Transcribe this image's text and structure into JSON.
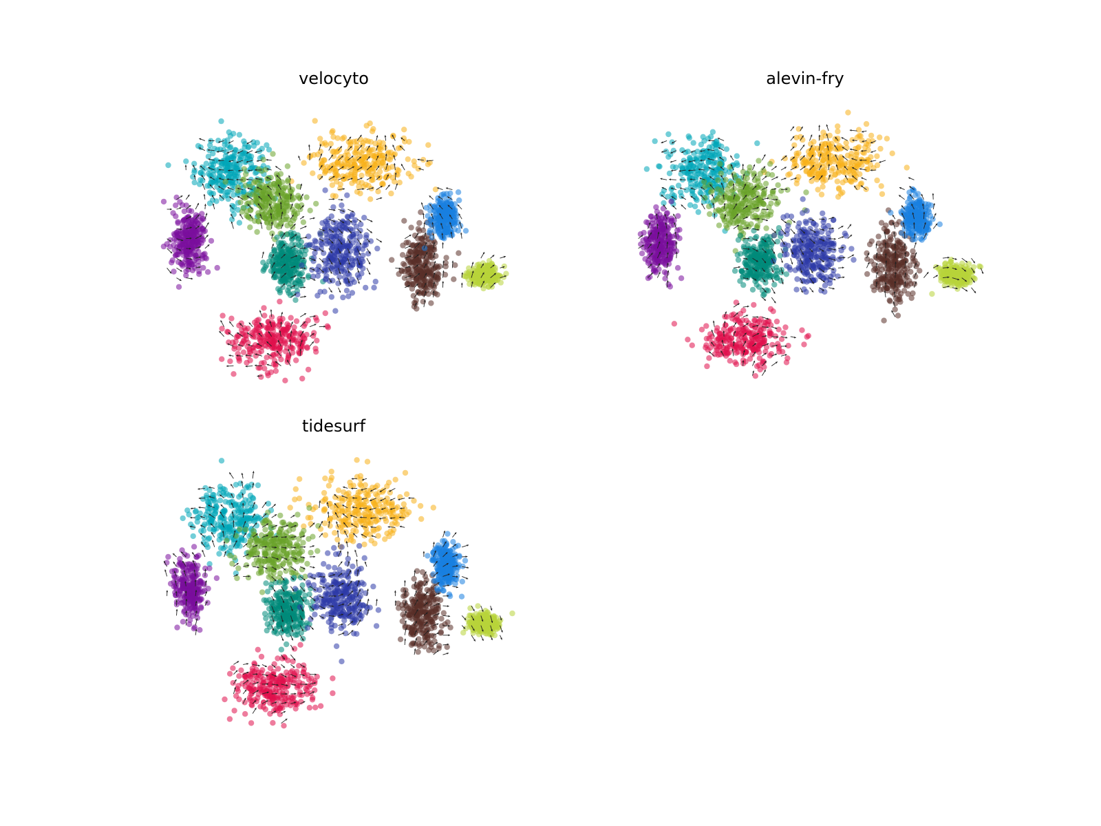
{
  "chart_data": [
    {
      "type": "scatter",
      "title": "velocyto",
      "xlabel": "",
      "ylabel": "",
      "axes_visible": false,
      "grid": false,
      "legend": "none",
      "overlay": "velocity-arrow-grid",
      "clusters": [
        {
          "color": "#00a5b8",
          "center": [
            -2.2,
            3.2
          ],
          "spread": [
            1.1,
            1.0
          ]
        },
        {
          "color": "#f8b01a",
          "center": [
            2.2,
            3.5
          ],
          "spread": [
            1.5,
            0.9
          ]
        },
        {
          "color": "#6aa32a",
          "center": [
            -0.8,
            2.2
          ],
          "spread": [
            1.0,
            0.9
          ]
        },
        {
          "color": "#7a0f9c",
          "center": [
            -3.6,
            0.9
          ],
          "spread": [
            0.5,
            0.9
          ]
        },
        {
          "color": "#008a7a",
          "center": [
            -0.3,
            0.2
          ],
          "spread": [
            0.6,
            0.8
          ]
        },
        {
          "color": "#2e3aa8",
          "center": [
            1.5,
            0.6
          ],
          "spread": [
            0.9,
            1.1
          ]
        },
        {
          "color": "#e0104c",
          "center": [
            -0.8,
            -2.3
          ],
          "spread": [
            1.3,
            0.8
          ]
        },
        {
          "color": "#5a3028",
          "center": [
            4.2,
            0.1
          ],
          "spread": [
            0.6,
            1.1
          ]
        },
        {
          "color": "#1a80e0",
          "center": [
            5.0,
            1.7
          ],
          "spread": [
            0.4,
            0.6
          ]
        },
        {
          "color": "#b8d43a",
          "center": [
            6.3,
            -0.2
          ],
          "spread": [
            0.5,
            0.3
          ]
        }
      ]
    },
    {
      "type": "scatter",
      "title": "alevin-fry",
      "xlabel": "",
      "ylabel": "",
      "axes_visible": false,
      "grid": false,
      "legend": "none",
      "overlay": "velocity-arrow-grid",
      "clusters": [
        {
          "color": "#00a5b8",
          "center": [
            -2.2,
            3.2
          ],
          "spread": [
            1.1,
            1.0
          ]
        },
        {
          "color": "#f8b01a",
          "center": [
            2.2,
            3.5
          ],
          "spread": [
            1.5,
            0.9
          ]
        },
        {
          "color": "#6aa32a",
          "center": [
            -0.8,
            2.2
          ],
          "spread": [
            1.0,
            0.9
          ]
        },
        {
          "color": "#7a0f9c",
          "center": [
            -3.6,
            0.9
          ],
          "spread": [
            0.5,
            0.9
          ]
        },
        {
          "color": "#008a7a",
          "center": [
            -0.3,
            0.2
          ],
          "spread": [
            0.6,
            0.8
          ]
        },
        {
          "color": "#2e3aa8",
          "center": [
            1.5,
            0.6
          ],
          "spread": [
            0.9,
            1.1
          ]
        },
        {
          "color": "#e0104c",
          "center": [
            -0.8,
            -2.3
          ],
          "spread": [
            1.3,
            0.8
          ]
        },
        {
          "color": "#5a3028",
          "center": [
            4.2,
            0.1
          ],
          "spread": [
            0.6,
            1.1
          ]
        },
        {
          "color": "#1a80e0",
          "center": [
            5.0,
            1.7
          ],
          "spread": [
            0.4,
            0.6
          ]
        },
        {
          "color": "#b8d43a",
          "center": [
            6.3,
            -0.2
          ],
          "spread": [
            0.5,
            0.3
          ]
        }
      ]
    },
    {
      "type": "scatter",
      "title": "tidesurf",
      "xlabel": "",
      "ylabel": "",
      "axes_visible": false,
      "grid": false,
      "legend": "none",
      "overlay": "velocity-arrow-grid",
      "clusters": [
        {
          "color": "#00a5b8",
          "center": [
            -2.2,
            3.2
          ],
          "spread": [
            1.1,
            1.0
          ]
        },
        {
          "color": "#f8b01a",
          "center": [
            2.2,
            3.5
          ],
          "spread": [
            1.5,
            0.9
          ]
        },
        {
          "color": "#6aa32a",
          "center": [
            -0.8,
            2.2
          ],
          "spread": [
            1.0,
            0.9
          ]
        },
        {
          "color": "#7a0f9c",
          "center": [
            -3.6,
            0.9
          ],
          "spread": [
            0.5,
            0.9
          ]
        },
        {
          "color": "#008a7a",
          "center": [
            -0.3,
            0.2
          ],
          "spread": [
            0.6,
            0.8
          ]
        },
        {
          "color": "#2e3aa8",
          "center": [
            1.5,
            0.6
          ],
          "spread": [
            0.9,
            1.1
          ]
        },
        {
          "color": "#e0104c",
          "center": [
            -0.8,
            -2.3
          ],
          "spread": [
            1.3,
            0.8
          ]
        },
        {
          "color": "#5a3028",
          "center": [
            4.2,
            0.1
          ],
          "spread": [
            0.6,
            1.1
          ]
        },
        {
          "color": "#1a80e0",
          "center": [
            5.0,
            1.7
          ],
          "spread": [
            0.4,
            0.6
          ]
        },
        {
          "color": "#b8d43a",
          "center": [
            6.3,
            -0.2
          ],
          "spread": [
            0.5,
            0.3
          ]
        }
      ]
    }
  ]
}
